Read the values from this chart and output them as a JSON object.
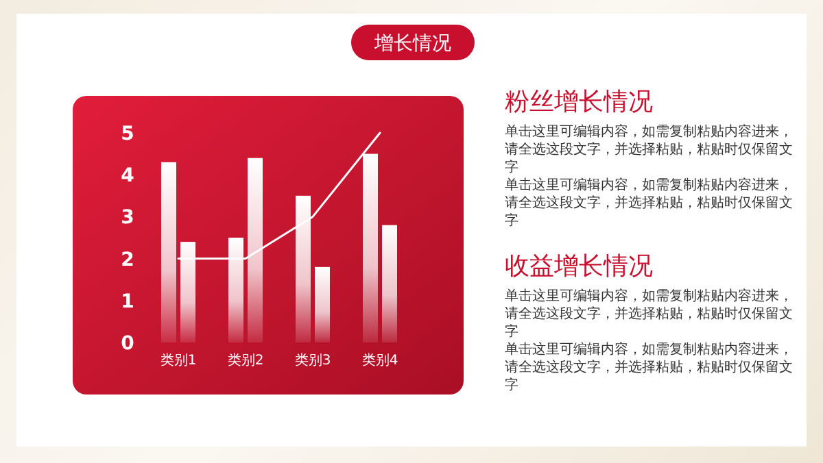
{
  "chart_data": {
    "type": "bar",
    "title": "增长情况",
    "categories": [
      "类别1",
      "类别2",
      "类别3",
      "类别4"
    ],
    "series": [
      {
        "color": "#ffffff",
        "values": [
          4.3,
          2.5,
          3.5,
          4.5
        ]
      },
      {
        "color": "#ffffff",
        "values": [
          2.4,
          4.4,
          1.8,
          2.8
        ]
      },
      {
        "type": "line",
        "color": "#ffffff",
        "values": [
          2,
          2,
          3,
          5
        ]
      }
    ],
    "ylim": [
      0,
      5
    ],
    "yticks": [
      0,
      1,
      2,
      3,
      4,
      5
    ],
    "annotations": [
      "粉丝增长情况",
      "单击这里可编辑内容，如需复制粘贴内容进来，请全选这段文字，并选择粘贴，粘贴时仅保留文字",
      "单击这里可编辑内容，如需复制粘贴内容进来，请全选这段文字，并选择粘贴，粘贴时仅保留文字",
      "收益增长情况",
      "单击这里可编辑内容，如需复制粘贴内容进来，请全选这段文字，并选择粘贴，粘贴时仅保留文字",
      "单击这里可编辑内容，如需复制粘贴内容进来，请全选这段文字，并选择粘贴，粘贴时仅保留文字"
    ]
  }
}
